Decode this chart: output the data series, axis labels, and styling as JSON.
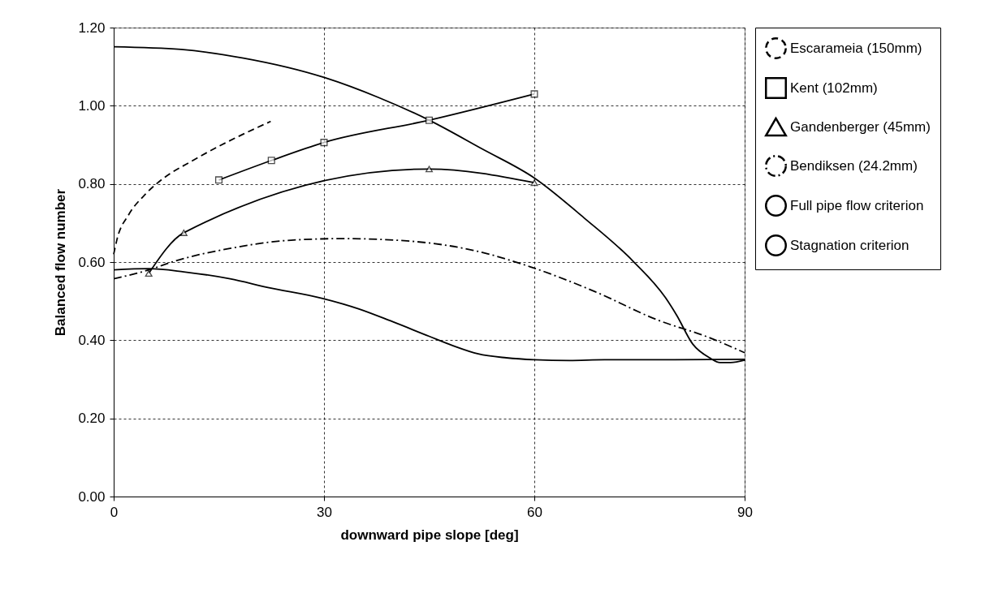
{
  "chart_data": {
    "type": "line",
    "xlabel": "downward pipe slope [deg]",
    "ylabel": "Balanced flow number",
    "xlim": [
      0,
      90
    ],
    "xticks": [
      0,
      30,
      60,
      90
    ],
    "ylim": [
      0,
      1.2
    ],
    "yticks": [
      {
        "value": 0,
        "label": "0.00"
      },
      {
        "value": 0.2,
        "label": "0.20"
      },
      {
        "value": 0.4,
        "label": "0.40"
      },
      {
        "value": 0.6,
        "label": "0.60"
      },
      {
        "value": 0.8,
        "label": "0.80"
      },
      {
        "value": 1,
        "label": "1.00"
      },
      {
        "value": 1.2,
        "label": "1.20"
      }
    ],
    "grid": true,
    "legend": "right",
    "series": [
      {
        "name": "Escarameia (150mm)",
        "color": "#000000",
        "line_style": "dashed",
        "marker": "none",
        "x": [
          0,
          0.5,
          2.1,
          4.6,
          7.3,
          10.8,
          15.4,
          22.4
        ],
        "values": [
          0.62,
          0.66,
          0.72,
          0.775,
          0.817,
          0.855,
          0.9,
          0.96
        ]
      },
      {
        "name": "Kent (102mm)",
        "color": "#000000",
        "line_style": "solid",
        "marker": "square",
        "x": [
          15,
          22.5,
          30,
          45,
          60
        ],
        "values": [
          0.81,
          0.86,
          0.906,
          0.963,
          1.03
        ]
      },
      {
        "name": "Gandenberger (45mm)",
        "color": "#000000",
        "line_style": "solid",
        "marker": "triangle",
        "x": [
          5,
          10,
          45,
          60
        ],
        "values": [
          0.571,
          0.675,
          0.838,
          0.803
        ]
      },
      {
        "name": "Bendiksen (24.2mm)",
        "color": "#000000",
        "line_style": "dashdot",
        "marker": "none",
        "x": [
          0,
          5,
          9,
          16.6,
          25.3,
          32.8,
          42.6,
          51.3,
          59.4,
          68.7,
          77.4,
          84.9,
          90
        ],
        "values": [
          0.557,
          0.58,
          0.604,
          0.635,
          0.656,
          0.66,
          0.653,
          0.63,
          0.588,
          0.524,
          0.453,
          0.407,
          0.368
        ]
      },
      {
        "name": "Full pipe flow criterion",
        "color": "#000000",
        "line_style": "solid",
        "marker": "none",
        "x": [
          0,
          9.6,
          18.5,
          30.1,
          37.8,
          45,
          52.5,
          60.1,
          67.1,
          74.1,
          78.7,
          80.3,
          82.6,
          85,
          86.5,
          88,
          90
        ],
        "values": [
          1.151,
          1.144,
          1.122,
          1.072,
          1.021,
          0.963,
          0.89,
          0.814,
          0.713,
          0.602,
          0.509,
          0.464,
          0.39,
          0.355,
          0.343,
          0.343,
          0.349
        ]
      },
      {
        "name": "Stagnation criterion",
        "color": "#000000",
        "line_style": "solid",
        "marker": "none",
        "x": [
          0,
          5,
          10,
          16.6,
          22,
          29.8,
          35,
          39.7,
          45,
          48.4,
          52,
          56,
          60,
          65,
          70,
          80,
          90
        ],
        "values": [
          0.58,
          0.583,
          0.575,
          0.557,
          0.535,
          0.507,
          0.48,
          0.448,
          0.41,
          0.386,
          0.365,
          0.355,
          0.35,
          0.348,
          0.35,
          0.35,
          0.351
        ]
      }
    ]
  }
}
